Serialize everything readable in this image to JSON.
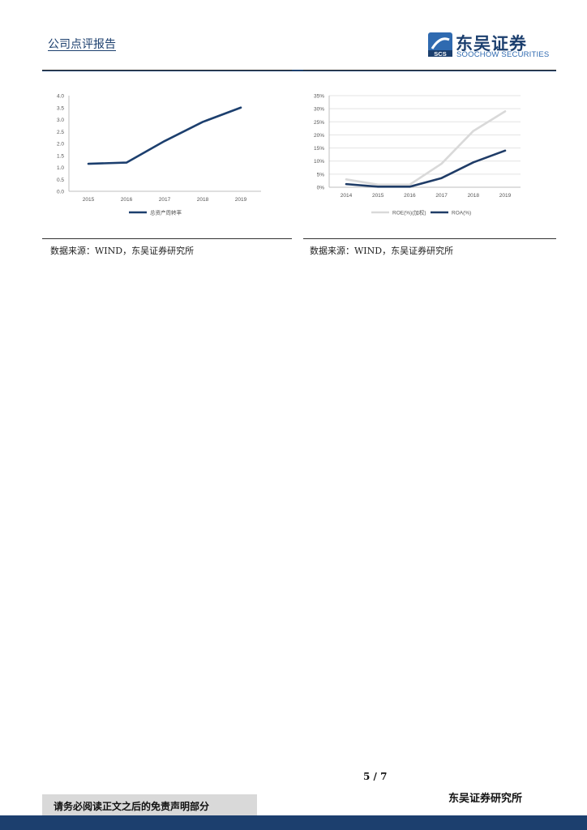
{
  "header": {
    "title": "公司点评报告",
    "logo_cn": "东吴证券",
    "logo_en": "SOOCHOW SECURITIES",
    "logo_mark_text": "SCS"
  },
  "colors": {
    "brand": "#1c3f6e",
    "roe_line": "#d9d9d9",
    "roa_line": "#1f3c67"
  },
  "chart_data": [
    {
      "type": "line",
      "x": [
        "2015",
        "2016",
        "2017",
        "2018",
        "2019"
      ],
      "series": [
        {
          "name": "总资产周转率",
          "values": [
            1.15,
            1.2,
            2.1,
            2.9,
            3.5
          ]
        }
      ],
      "yticks": [
        "0.0",
        "0.5",
        "1.0",
        "1.5",
        "2.0",
        "2.5",
        "3.0",
        "3.5",
        "4.0"
      ],
      "ylim": [
        0,
        4
      ],
      "grid": false,
      "legend": "bottom",
      "source": "数据来源：WIND，东吴证券研究所"
    },
    {
      "type": "line",
      "x": [
        "2014",
        "2015",
        "2016",
        "2017",
        "2018",
        "2019"
      ],
      "series": [
        {
          "name": "ROE(%)(加权)",
          "values": [
            3,
            1,
            1,
            9,
            21.5,
            29
          ],
          "color": "#d9d9d9"
        },
        {
          "name": "ROA(%)",
          "values": [
            1.2,
            0.2,
            0.2,
            3.5,
            9.5,
            14
          ],
          "color": "#1f3c67"
        }
      ],
      "yticks": [
        "0%",
        "5%",
        "10%",
        "15%",
        "20%",
        "25%",
        "30%",
        "35%"
      ],
      "ylim": [
        0,
        35
      ],
      "grid": true,
      "legend": "bottom",
      "source": "数据来源：WIND，东吴证券研究所"
    }
  ],
  "footer": {
    "page": "5 / 7",
    "disclaimer": "请务必阅读正文之后的免责声明部分",
    "org": "东吴证券研究所"
  }
}
